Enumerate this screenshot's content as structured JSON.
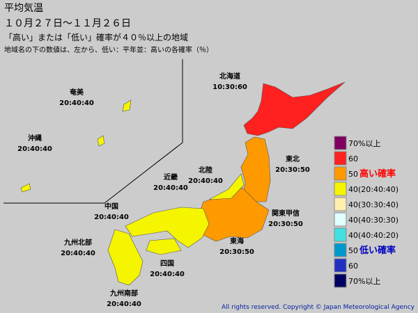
{
  "header": {
    "title": "平均気温",
    "period": "１０月２７日～１１月２６日",
    "subtitle": "「高い」または「低い」確率が４０％以上の地域",
    "note": "地域名の下の数値は、左から、低い：平年並：高いの各確率（％）"
  },
  "regions": [
    {
      "name": "北海道",
      "probs": "10:30:60"
    },
    {
      "name": "東北",
      "probs": "20:30:50"
    },
    {
      "name": "関東甲信",
      "probs": "20:30:50"
    },
    {
      "name": "東海",
      "probs": "20:30:50"
    },
    {
      "name": "北陸",
      "probs": "20:40:40"
    },
    {
      "name": "近畿",
      "probs": "20:40:40"
    },
    {
      "name": "中国",
      "probs": "20:40:40"
    },
    {
      "name": "四国",
      "probs": "20:40:40"
    },
    {
      "name": "九州北部",
      "probs": "20:40:40"
    },
    {
      "name": "九州南部",
      "probs": "20:40:40"
    },
    {
      "name": "奄美",
      "probs": "20:40:40"
    },
    {
      "name": "沖縄",
      "probs": "20:40:40"
    }
  ],
  "legend": [
    {
      "label": "70%以上",
      "color": "#800060"
    },
    {
      "label": "60",
      "color": "#ff2020"
    },
    {
      "label": "50",
      "color": "#ff9900",
      "note": "高い確率"
    },
    {
      "label": "40(20:40:40)",
      "color": "#f5f500"
    },
    {
      "label": "40(30:30:40)",
      "color": "#fff0b0"
    },
    {
      "label": "40(40:30:30)",
      "color": "#e0ffff"
    },
    {
      "label": "40(40:40:20)",
      "color": "#40e0e0"
    },
    {
      "label": "50",
      "color": "#0099cc",
      "note": "低い確率"
    },
    {
      "label": "60",
      "color": "#2030c0"
    },
    {
      "label": "70%以上",
      "color": "#000060"
    }
  ],
  "copyright": "All rights reserved. Copyright © Japan Meteorological Agency"
}
